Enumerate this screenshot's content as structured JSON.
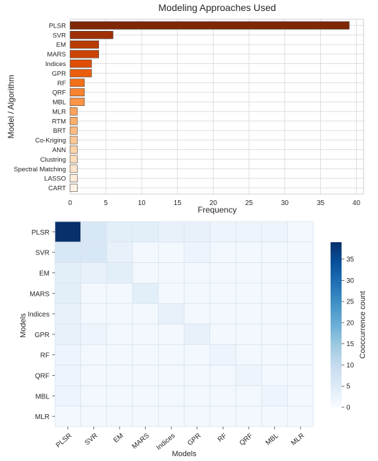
{
  "chart_data": [
    {
      "type": "bar",
      "orientation": "horizontal",
      "title": "Modeling Approaches Used",
      "xlabel": "Frequency",
      "ylabel": "Model / Algorithm",
      "xlim": [
        0,
        41
      ],
      "xticks": [
        0,
        5,
        10,
        15,
        20,
        25,
        30,
        35,
        40
      ],
      "grid": true,
      "categories": [
        "PLSR",
        "SVR",
        "EM",
        "MARS",
        "Indices",
        "GPR",
        "RF",
        "QRF",
        "MBL",
        "MLR",
        "RTM",
        "BRT",
        "Co-Kriging",
        "ANN",
        "Clustring",
        "Spectral Matching",
        "LASSO",
        "CART"
      ],
      "values": [
        39,
        6,
        4,
        4,
        3,
        3,
        2,
        2,
        2,
        1,
        1,
        1,
        1,
        1,
        1,
        1,
        1,
        1
      ],
      "colors": [
        "#7f2704",
        "#9f3003",
        "#b93d02",
        "#cb4301",
        "#de4e05",
        "#ea5f0d",
        "#f3701b",
        "#f88230",
        "#fd9446",
        "#fda25a",
        "#fdae6b",
        "#fdbb81",
        "#fdc895",
        "#fdd3a9",
        "#fddcbb",
        "#fee5cc",
        "#feecd9",
        "#fff3e6"
      ]
    },
    {
      "type": "heatmap",
      "xlabel": "Models",
      "ylabel": "Models",
      "labels": [
        "PLSR",
        "SVR",
        "EM",
        "MARS",
        "Indices",
        "GPR",
        "RF",
        "QRF",
        "MBL",
        "MLR"
      ],
      "matrix": [
        [
          39,
          6,
          4,
          4,
          3,
          3,
          2,
          2,
          2,
          1
        ],
        [
          6,
          6,
          3,
          1,
          1,
          2,
          1,
          1,
          1,
          1
        ],
        [
          4,
          3,
          4,
          1,
          1,
          1,
          1,
          1,
          1,
          1
        ],
        [
          4,
          1,
          1,
          4,
          1,
          1,
          1,
          1,
          1,
          1
        ],
        [
          3,
          1,
          1,
          1,
          3,
          1,
          1,
          1,
          1,
          1
        ],
        [
          3,
          2,
          1,
          1,
          1,
          3,
          1,
          1,
          1,
          1
        ],
        [
          2,
          1,
          1,
          1,
          1,
          1,
          2,
          1,
          1,
          1
        ],
        [
          2,
          1,
          1,
          1,
          1,
          1,
          1,
          2,
          1,
          1
        ],
        [
          2,
          1,
          1,
          1,
          1,
          1,
          1,
          1,
          2,
          1
        ],
        [
          1,
          1,
          1,
          1,
          1,
          1,
          1,
          1,
          1,
          1
        ]
      ],
      "colormap": "Blues",
      "vmin": 0,
      "vmax": 39,
      "colorbar_label": "Cooccurrence count",
      "colorbar_ticks": [
        0,
        5,
        10,
        15,
        20,
        25,
        30,
        35
      ]
    }
  ]
}
